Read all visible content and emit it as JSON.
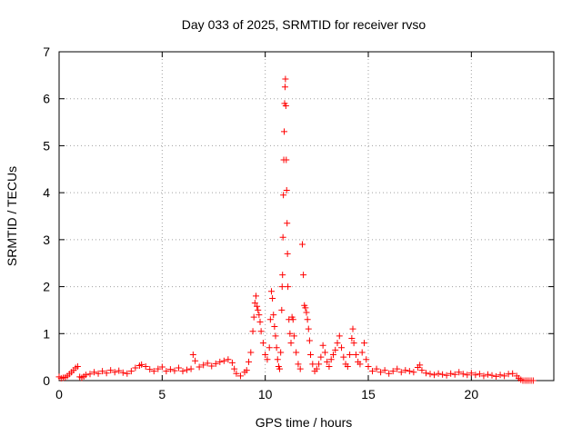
{
  "chart_data": {
    "type": "scatter",
    "title": "Day 033 of 2025, SRMTID for receiver rvso",
    "xlabel": "GPS time / hours",
    "ylabel": "SRMTID / TECUs",
    "xlim": [
      0,
      24
    ],
    "ylim": [
      0,
      7
    ],
    "xticks": [
      0,
      5,
      10,
      15,
      20
    ],
    "yticks": [
      0,
      1,
      2,
      3,
      4,
      5,
      6,
      7
    ],
    "grid": true,
    "marker": "plus",
    "series": [
      {
        "name": "SRMTID",
        "color": "#ff0000",
        "points": [
          [
            0.0,
            0.08
          ],
          [
            0.1,
            0.05
          ],
          [
            0.2,
            0.06
          ],
          [
            0.3,
            0.07
          ],
          [
            0.4,
            0.1
          ],
          [
            0.5,
            0.14
          ],
          [
            0.6,
            0.18
          ],
          [
            0.7,
            0.22
          ],
          [
            0.8,
            0.27
          ],
          [
            0.9,
            0.3
          ],
          [
            1.0,
            0.08
          ],
          [
            1.1,
            0.06
          ],
          [
            1.2,
            0.09
          ],
          [
            1.3,
            0.12
          ],
          [
            1.5,
            0.14
          ],
          [
            1.7,
            0.18
          ],
          [
            1.9,
            0.15
          ],
          [
            2.1,
            0.2
          ],
          [
            2.3,
            0.16
          ],
          [
            2.5,
            0.22
          ],
          [
            2.7,
            0.18
          ],
          [
            2.9,
            0.21
          ],
          [
            3.1,
            0.17
          ],
          [
            3.3,
            0.15
          ],
          [
            3.5,
            0.2
          ],
          [
            3.7,
            0.27
          ],
          [
            3.9,
            0.32
          ],
          [
            4.0,
            0.34
          ],
          [
            4.2,
            0.3
          ],
          [
            4.4,
            0.24
          ],
          [
            4.6,
            0.2
          ],
          [
            4.8,
            0.25
          ],
          [
            5.0,
            0.29
          ],
          [
            5.2,
            0.2
          ],
          [
            5.4,
            0.24
          ],
          [
            5.6,
            0.21
          ],
          [
            5.8,
            0.27
          ],
          [
            6.0,
            0.2
          ],
          [
            6.2,
            0.23
          ],
          [
            6.4,
            0.25
          ],
          [
            6.5,
            0.55
          ],
          [
            6.6,
            0.42
          ],
          [
            6.8,
            0.29
          ],
          [
            7.0,
            0.33
          ],
          [
            7.2,
            0.37
          ],
          [
            7.4,
            0.31
          ],
          [
            7.6,
            0.36
          ],
          [
            7.8,
            0.4
          ],
          [
            8.0,
            0.42
          ],
          [
            8.2,
            0.45
          ],
          [
            8.4,
            0.38
          ],
          [
            8.5,
            0.25
          ],
          [
            8.6,
            0.15
          ],
          [
            8.8,
            0.1
          ],
          [
            9.0,
            0.18
          ],
          [
            9.1,
            0.22
          ],
          [
            9.2,
            0.4
          ],
          [
            9.3,
            0.6
          ],
          [
            9.4,
            1.05
          ],
          [
            9.45,
            1.35
          ],
          [
            9.5,
            1.65
          ],
          [
            9.55,
            1.8
          ],
          [
            9.6,
            1.58
          ],
          [
            9.65,
            1.5
          ],
          [
            9.7,
            1.4
          ],
          [
            9.75,
            1.25
          ],
          [
            9.8,
            1.05
          ],
          [
            9.9,
            0.8
          ],
          [
            10.0,
            0.55
          ],
          [
            10.1,
            0.45
          ],
          [
            10.2,
            0.7
          ],
          [
            10.25,
            1.3
          ],
          [
            10.3,
            1.9
          ],
          [
            10.35,
            1.75
          ],
          [
            10.4,
            1.4
          ],
          [
            10.45,
            1.15
          ],
          [
            10.5,
            0.95
          ],
          [
            10.55,
            0.7
          ],
          [
            10.6,
            0.45
          ],
          [
            10.65,
            0.3
          ],
          [
            10.7,
            0.25
          ],
          [
            10.75,
            0.6
          ],
          [
            10.8,
            1.5
          ],
          [
            10.82,
            2.0
          ],
          [
            10.84,
            2.25
          ],
          [
            10.86,
            3.05
          ],
          [
            10.88,
            3.95
          ],
          [
            10.9,
            4.7
          ],
          [
            10.92,
            5.3
          ],
          [
            10.94,
            5.9
          ],
          [
            10.96,
            6.25
          ],
          [
            10.98,
            6.42
          ],
          [
            11.0,
            5.85
          ],
          [
            11.02,
            4.7
          ],
          [
            11.04,
            4.05
          ],
          [
            11.06,
            3.35
          ],
          [
            11.08,
            2.7
          ],
          [
            11.1,
            2.0
          ],
          [
            11.15,
            1.3
          ],
          [
            11.2,
            1.0
          ],
          [
            11.25,
            0.8
          ],
          [
            11.3,
            1.35
          ],
          [
            11.35,
            1.3
          ],
          [
            11.4,
            0.95
          ],
          [
            11.5,
            0.6
          ],
          [
            11.6,
            0.35
          ],
          [
            11.7,
            0.25
          ],
          [
            11.8,
            2.9
          ],
          [
            11.85,
            2.25
          ],
          [
            11.9,
            1.6
          ],
          [
            11.95,
            1.55
          ],
          [
            12.0,
            1.45
          ],
          [
            12.05,
            1.3
          ],
          [
            12.1,
            1.1
          ],
          [
            12.15,
            0.85
          ],
          [
            12.2,
            0.55
          ],
          [
            12.3,
            0.35
          ],
          [
            12.4,
            0.2
          ],
          [
            12.5,
            0.25
          ],
          [
            12.6,
            0.35
          ],
          [
            12.7,
            0.5
          ],
          [
            12.8,
            0.75
          ],
          [
            12.9,
            0.6
          ],
          [
            13.0,
            0.4
          ],
          [
            13.1,
            0.3
          ],
          [
            13.2,
            0.45
          ],
          [
            13.3,
            0.55
          ],
          [
            13.4,
            0.65
          ],
          [
            13.5,
            0.8
          ],
          [
            13.6,
            0.95
          ],
          [
            13.7,
            0.7
          ],
          [
            13.8,
            0.5
          ],
          [
            13.9,
            0.35
          ],
          [
            14.0,
            0.3
          ],
          [
            14.1,
            0.55
          ],
          [
            14.2,
            0.9
          ],
          [
            14.25,
            1.1
          ],
          [
            14.3,
            0.8
          ],
          [
            14.4,
            0.55
          ],
          [
            14.5,
            0.4
          ],
          [
            14.6,
            0.35
          ],
          [
            14.7,
            0.6
          ],
          [
            14.8,
            0.8
          ],
          [
            14.9,
            0.45
          ],
          [
            15.0,
            0.3
          ],
          [
            15.2,
            0.2
          ],
          [
            15.4,
            0.25
          ],
          [
            15.6,
            0.18
          ],
          [
            15.8,
            0.22
          ],
          [
            16.0,
            0.15
          ],
          [
            16.2,
            0.2
          ],
          [
            16.4,
            0.25
          ],
          [
            16.6,
            0.18
          ],
          [
            16.8,
            0.22
          ],
          [
            17.0,
            0.2
          ],
          [
            17.2,
            0.18
          ],
          [
            17.4,
            0.28
          ],
          [
            17.5,
            0.33
          ],
          [
            17.6,
            0.22
          ],
          [
            17.8,
            0.16
          ],
          [
            18.0,
            0.14
          ],
          [
            18.2,
            0.12
          ],
          [
            18.4,
            0.15
          ],
          [
            18.6,
            0.13
          ],
          [
            18.8,
            0.11
          ],
          [
            19.0,
            0.15
          ],
          [
            19.2,
            0.13
          ],
          [
            19.4,
            0.18
          ],
          [
            19.6,
            0.14
          ],
          [
            19.8,
            0.12
          ],
          [
            20.0,
            0.16
          ],
          [
            20.2,
            0.12
          ],
          [
            20.4,
            0.14
          ],
          [
            20.6,
            0.1
          ],
          [
            20.8,
            0.13
          ],
          [
            21.0,
            0.11
          ],
          [
            21.2,
            0.09
          ],
          [
            21.4,
            0.12
          ],
          [
            21.6,
            0.1
          ],
          [
            21.8,
            0.14
          ],
          [
            22.0,
            0.15
          ],
          [
            22.2,
            0.1
          ],
          [
            22.3,
            0.05
          ],
          [
            22.4,
            0.02
          ],
          [
            22.5,
            0.0
          ],
          [
            22.6,
            0.0
          ],
          [
            22.7,
            0.0
          ],
          [
            22.8,
            0.0
          ],
          [
            22.9,
            0.0
          ],
          [
            23.0,
            0.0
          ]
        ]
      }
    ]
  }
}
